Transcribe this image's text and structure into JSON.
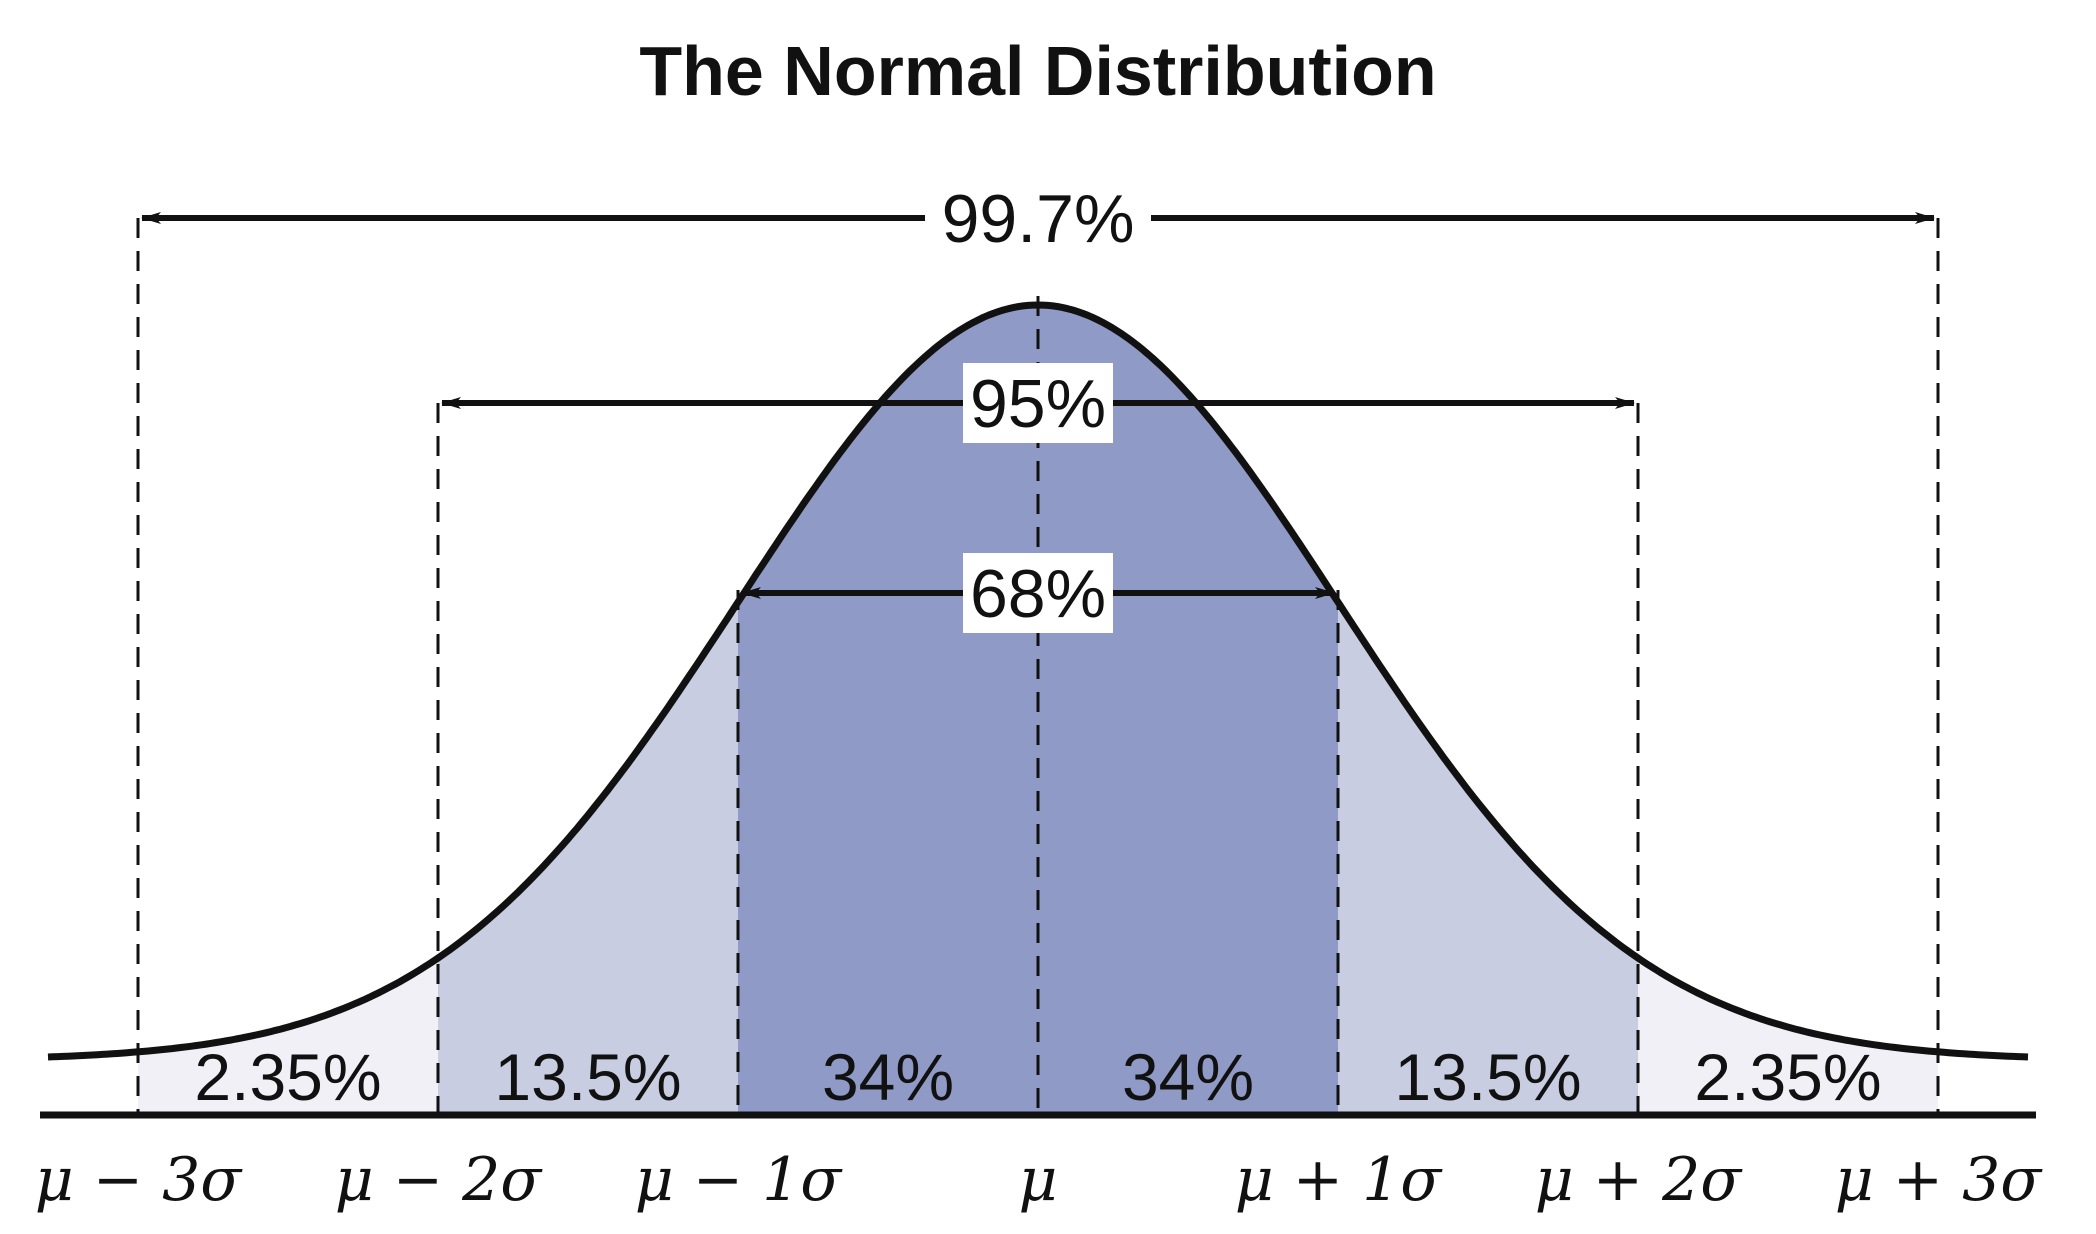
{
  "chart_data": {
    "type": "area",
    "title": "The Normal Distribution",
    "xlabel": "",
    "ylabel": "",
    "xlim": [
      -3.3,
      3.3
    ],
    "ylim": [
      0,
      0.4
    ],
    "grid": false,
    "x_ticks": [
      -3,
      -2,
      -1,
      0,
      1,
      2,
      3
    ],
    "tick_labels": [
      "μ − 3σ",
      "μ − 2σ",
      "μ − 1σ",
      "μ",
      "μ + 1σ",
      "μ + 2σ",
      "μ + 3σ"
    ],
    "regions": [
      {
        "from": -3,
        "to": -2,
        "label": "2.35%",
        "value": 2.35,
        "color": "#f0f0f6"
      },
      {
        "from": -2,
        "to": -1,
        "label": "13.5%",
        "value": 13.5,
        "color": "#c8cde1"
      },
      {
        "from": -1,
        "to": 0,
        "label": "34%",
        "value": 34,
        "color": "#8f9bc6"
      },
      {
        "from": 0,
        "to": 1,
        "label": "34%",
        "value": 34,
        "color": "#8f9bc6"
      },
      {
        "from": 1,
        "to": 2,
        "label": "13.5%",
        "value": 13.5,
        "color": "#c8cde1"
      },
      {
        "from": 2,
        "to": 3,
        "label": "2.35%",
        "value": 2.35,
        "color": "#f0f0f6"
      }
    ],
    "spans": [
      {
        "from": -3,
        "to": 3,
        "label": "99.7%",
        "value": 99.7
      },
      {
        "from": -2,
        "to": 2,
        "label": "95%",
        "value": 95
      },
      {
        "from": -1,
        "to": 1,
        "label": "68%",
        "value": 68
      }
    ],
    "colors": {
      "curve": "#111111",
      "axis": "#111111",
      "guides": "#111111"
    }
  }
}
